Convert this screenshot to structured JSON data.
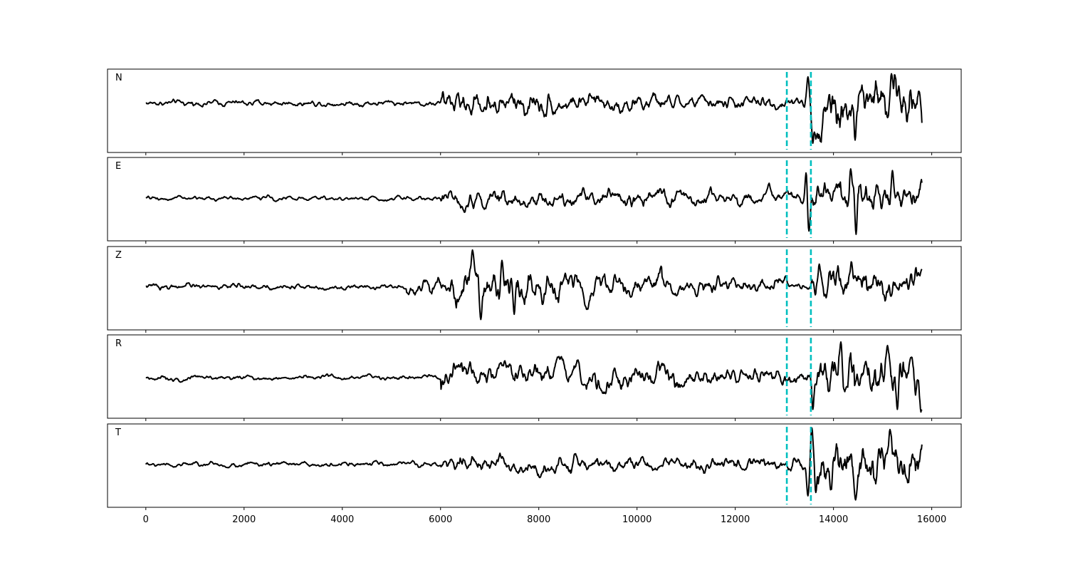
{
  "chart_data": {
    "type": "line",
    "xlim": [
      -780,
      16600
    ],
    "x_ticks": [
      0,
      2000,
      4000,
      6000,
      8000,
      10000,
      12000,
      14000,
      16000
    ],
    "x_tick_labels": [
      "0",
      "2000",
      "4000",
      "6000",
      "8000",
      "10000",
      "12000",
      "14000",
      "16000"
    ],
    "xlabel": "",
    "ylabel": "",
    "grid": false,
    "sample_count": 15800,
    "line_color": "#000000",
    "marker_color": "#00bfbf",
    "markers": [
      13050,
      13540
    ],
    "panels": [
      {
        "label": "N",
        "ylim": [
          -3.2,
          2.2
        ],
        "segments": [
          {
            "from": 0,
            "to": 6000,
            "amp": 0.12
          },
          {
            "from": 6000,
            "to": 8200,
            "amp": 0.55
          },
          {
            "from": 8200,
            "to": 10500,
            "amp": 0.38
          },
          {
            "from": 10500,
            "to": 13050,
            "amp": 0.28
          },
          {
            "from": 13050,
            "to": 13540,
            "amp": 0.2
          },
          {
            "from": 13540,
            "to": 15800,
            "amp": 1.15
          }
        ],
        "peaks": [
          [
            13480,
            1.7
          ],
          [
            13580,
            -2.6
          ],
          [
            14440,
            -2.4
          ],
          [
            15180,
            1.9
          ]
        ]
      },
      {
        "label": "E",
        "ylim": [
          -2.6,
          2.5
        ],
        "segments": [
          {
            "from": 0,
            "to": 6000,
            "amp": 0.13
          },
          {
            "from": 6000,
            "to": 8500,
            "amp": 0.55
          },
          {
            "from": 8500,
            "to": 11000,
            "amp": 0.5
          },
          {
            "from": 11000,
            "to": 13050,
            "amp": 0.42
          },
          {
            "from": 13050,
            "to": 13540,
            "amp": 0.35
          },
          {
            "from": 13540,
            "to": 15800,
            "amp": 1.05
          }
        ],
        "peaks": [
          [
            13450,
            1.9
          ],
          [
            13500,
            -2.0
          ],
          [
            14350,
            1.8
          ],
          [
            14460,
            -2.2
          ],
          [
            15200,
            1.7
          ]
        ]
      },
      {
        "label": "Z",
        "ylim": [
          -2.5,
          2.3
        ],
        "segments": [
          {
            "from": 0,
            "to": 5300,
            "amp": 0.14
          },
          {
            "from": 5300,
            "to": 6200,
            "amp": 0.35
          },
          {
            "from": 6200,
            "to": 7800,
            "amp": 0.95
          },
          {
            "from": 7800,
            "to": 10500,
            "amp": 0.6
          },
          {
            "from": 10500,
            "to": 13050,
            "amp": 0.35
          },
          {
            "from": 13050,
            "to": 13540,
            "amp": 0.22
          },
          {
            "from": 13540,
            "to": 15800,
            "amp": 0.75
          }
        ],
        "peaks": [
          [
            6650,
            2.1
          ],
          [
            6820,
            -1.9
          ],
          [
            7250,
            1.5
          ],
          [
            7500,
            -1.6
          ],
          [
            15800,
            1.0
          ]
        ]
      },
      {
        "label": "R",
        "ylim": [
          -2.3,
          2.4
        ],
        "segments": [
          {
            "from": 0,
            "to": 6000,
            "amp": 0.12
          },
          {
            "from": 6000,
            "to": 8300,
            "amp": 0.6
          },
          {
            "from": 8300,
            "to": 11000,
            "amp": 0.55
          },
          {
            "from": 11000,
            "to": 13050,
            "amp": 0.42
          },
          {
            "from": 13050,
            "to": 13540,
            "amp": 0.35
          },
          {
            "from": 13540,
            "to": 15800,
            "amp": 1.1
          }
        ],
        "peaks": [
          [
            13580,
            -1.8
          ],
          [
            14150,
            2.0
          ],
          [
            15100,
            1.8
          ],
          [
            15300,
            -1.8
          ]
        ]
      },
      {
        "label": "T",
        "ylim": [
          -2.3,
          2.2
        ],
        "segments": [
          {
            "from": 0,
            "to": 6000,
            "amp": 0.1
          },
          {
            "from": 6000,
            "to": 9000,
            "amp": 0.35
          },
          {
            "from": 9000,
            "to": 13050,
            "amp": 0.3
          },
          {
            "from": 13050,
            "to": 13540,
            "amp": 0.3
          },
          {
            "from": 13540,
            "to": 15800,
            "amp": 0.95
          }
        ],
        "peaks": [
          [
            13480,
            -1.7
          ],
          [
            13560,
            2.0
          ],
          [
            13640,
            -1.5
          ],
          [
            14450,
            -1.9
          ],
          [
            15150,
            1.9
          ]
        ]
      }
    ]
  }
}
